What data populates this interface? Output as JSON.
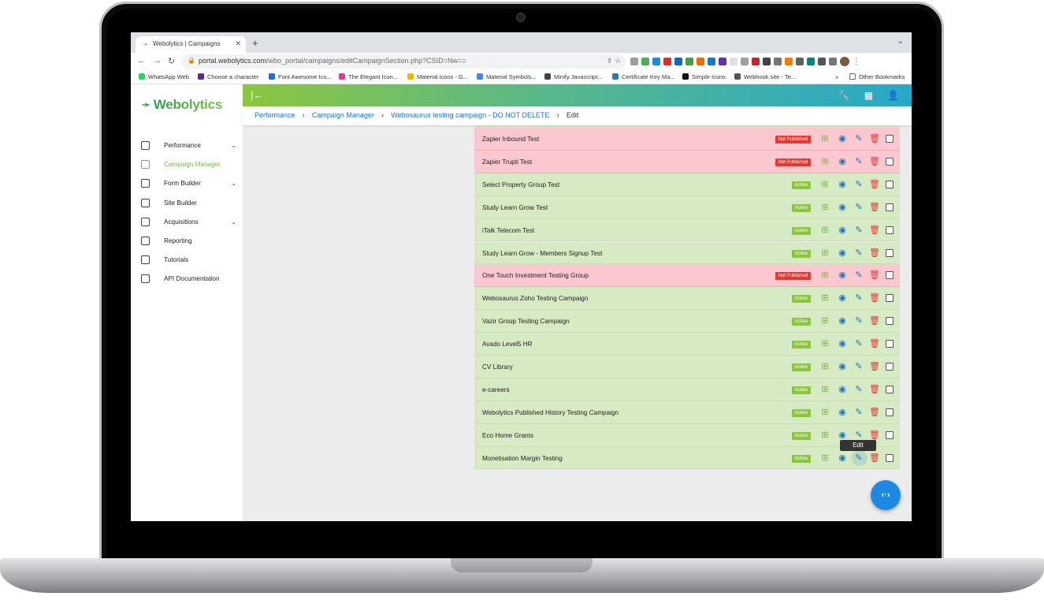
{
  "browser": {
    "tab_title": "Webolytics | Campaigns",
    "new_tab": "+",
    "url_host": "portal.webolytics.com",
    "url_path": "/wbo_portal/campaigns/editCampaignSection.php?CSID=Nw==",
    "bookmarks": [
      {
        "label": "WhatsApp Web",
        "color": "#25d366"
      },
      {
        "label": "Choose a character",
        "color": "#5b2c83"
      },
      {
        "label": "Font Awesome Ico...",
        "color": "#1c6fd1"
      },
      {
        "label": "The Elegant Icon...",
        "color": "#e23b8c"
      },
      {
        "label": "Material icons - G...",
        "color": "#f4b400"
      },
      {
        "label": "Material Symbols...",
        "color": "#4285f4"
      },
      {
        "label": "Minify Javascript...",
        "color": "#444444"
      },
      {
        "label": "Certificate Key Ma...",
        "color": "#2a7ab8"
      },
      {
        "label": "Simple Icons",
        "color": "#111111"
      },
      {
        "label": "Webhook.site - Te...",
        "color": "#555555"
      }
    ],
    "bookmarks_more": "»",
    "other_bookmarks": "Other Bookmarks"
  },
  "brand": {
    "name": "Webolytics",
    "accent": "#7ab648",
    "top_gradient": [
      "#8cc63f",
      "#27a8c7"
    ]
  },
  "sidebar": {
    "items": [
      {
        "label": "Performance",
        "icon": "dashboard-icon",
        "expandable": true,
        "active": false
      },
      {
        "label": "Campaign Manager",
        "icon": "trend-icon",
        "expandable": false,
        "active": true
      },
      {
        "label": "Form Builder",
        "icon": "form-icon",
        "expandable": true,
        "active": false
      },
      {
        "label": "Site Builder",
        "icon": "site-icon",
        "expandable": false,
        "active": false
      },
      {
        "label": "Acquisitions",
        "icon": "people-icon",
        "expandable": true,
        "active": false
      },
      {
        "label": "Reporting",
        "icon": "report-icon",
        "expandable": false,
        "active": false
      },
      {
        "label": "Tutorials",
        "icon": "tutorials-icon",
        "expandable": false,
        "active": false
      },
      {
        "label": "API Documentation",
        "icon": "book-icon",
        "expandable": false,
        "active": false
      }
    ]
  },
  "breadcrumb": [
    "Performance",
    "Campaign Manager",
    "Webosaurus testing campaign - DO NOT DELETE",
    "Edit"
  ],
  "status_labels": {
    "active": "Active",
    "not_published": "Not Published"
  },
  "status_colors": {
    "active": "#8cc63f",
    "not_published": "#e53935",
    "row_green": "#d6eac3",
    "row_red": "#fbc8cf"
  },
  "campaigns": [
    {
      "name": "Zapier Inbound Test",
      "status": "Not Published"
    },
    {
      "name": "Zapier Trupti Test",
      "status": "Not Published"
    },
    {
      "name": "Select Property Group Test",
      "status": "Active"
    },
    {
      "name": "Study Learn Grow Test",
      "status": "Active"
    },
    {
      "name": "iTalk Telecom Test",
      "status": "Active"
    },
    {
      "name": "Study Learn Grow - Members Signup Test",
      "status": "Active"
    },
    {
      "name": "One Touch Investment Testing Group",
      "status": "Not Published"
    },
    {
      "name": "Webosaurus Zoho Testing Campaign",
      "status": "Active"
    },
    {
      "name": "Vazir Group Testing Campaign",
      "status": "Active"
    },
    {
      "name": "Avado Level5 HR",
      "status": "Active"
    },
    {
      "name": "CV Library",
      "status": "Active"
    },
    {
      "name": "e-careers",
      "status": "Active"
    },
    {
      "name": "Webolytics Published History Testing Campaign",
      "status": "Active"
    },
    {
      "name": "Eco Home Grants",
      "status": "Active"
    },
    {
      "name": "Monetisation Margin Testing",
      "status": "Active"
    }
  ],
  "tooltip": "Edit",
  "fab_icon": "code-arrows-icon"
}
